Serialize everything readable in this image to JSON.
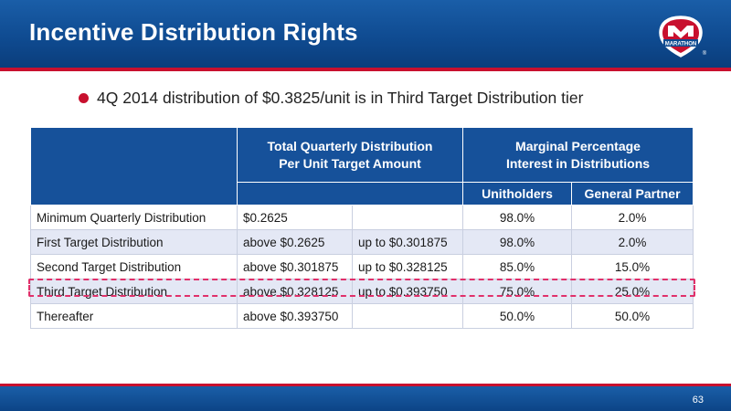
{
  "slide": {
    "title": "Incentive Distribution Rights",
    "bullet": "4Q 2014 distribution of $0.3825/unit is in Third Target Distribution tier",
    "page_number": "63"
  },
  "logo": {
    "text": "MARATHON",
    "registered_mark": "®"
  },
  "table": {
    "header": {
      "col_target_line1": "Total Quarterly Distribution",
      "col_target_line2": "Per Unit Target Amount",
      "col_marginal_line1": "Marginal Percentage",
      "col_marginal_line2": "Interest in Distributions",
      "unitholders": "Unitholders",
      "general_partner": "General Partner"
    },
    "rows": [
      {
        "label": "Minimum Quarterly Distribution",
        "from": "$0.2625",
        "to": "",
        "unitholders": "98.0%",
        "general_partner": "2.0%"
      },
      {
        "label": "First Target Distribution",
        "from": "above $0.2625",
        "to": "up to $0.301875",
        "unitholders": "98.0%",
        "general_partner": "2.0%"
      },
      {
        "label": "Second Target Distribution",
        "from": "above $0.301875",
        "to": "up to $0.328125",
        "unitholders": "85.0%",
        "general_partner": "15.0%"
      },
      {
        "label": "Third Target Distribution",
        "from": "above $0.328125",
        "to": "up to $0.393750",
        "unitholders": "75.0%",
        "general_partner": "25.0%"
      },
      {
        "label": "Thereafter",
        "from": "above $0.393750",
        "to": "",
        "unitholders": "50.0%",
        "general_partner": "50.0%"
      }
    ]
  },
  "colors": {
    "brand_blue": "#16519a",
    "brand_red": "#c8102e",
    "row_alt": "#e4e8f5",
    "highlight_dash": "#e0306a"
  }
}
